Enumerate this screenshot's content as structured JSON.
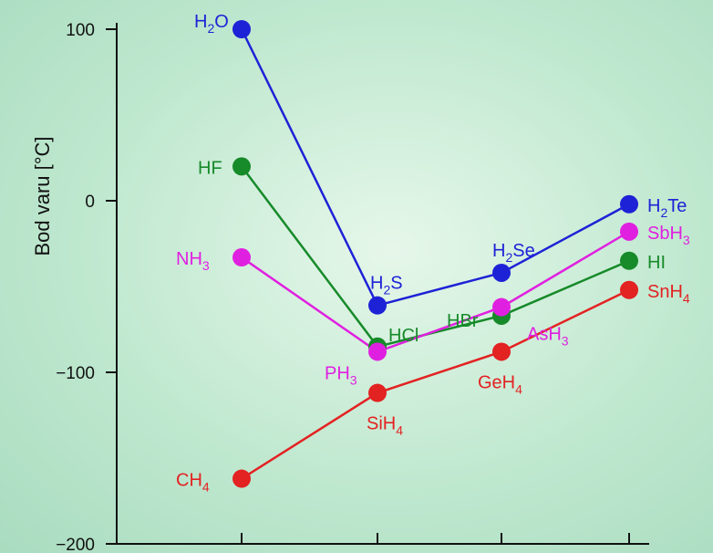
{
  "chart_data": {
    "type": "line",
    "ylabel": "Bod varu [°C]",
    "xlabel": "",
    "ylim": [
      -200,
      100
    ],
    "yticks": [
      100,
      0,
      -100,
      -200
    ],
    "ytick_labels": [
      "100",
      "0",
      "−100",
      "−200"
    ],
    "x": [
      1,
      2,
      3,
      4
    ],
    "grid": false,
    "legend": "none",
    "series": [
      {
        "color": "#1e22d6",
        "values": [
          100,
          -61,
          -42,
          -2
        ],
        "labels": [
          {
            "text": "H",
            "sub": "2",
            "rest": "O"
          },
          {
            "text": "H",
            "sub": "2",
            "rest": "S"
          },
          {
            "text": "H",
            "sub": "2",
            "rest": "Se"
          },
          {
            "text": "H",
            "sub": "2",
            "rest": "Te"
          }
        ]
      },
      {
        "color": "#178a2a",
        "values": [
          20,
          -85,
          -67,
          -35
        ],
        "labels": [
          {
            "text": "HF"
          },
          {
            "text": "HCl"
          },
          {
            "text": "HBr"
          },
          {
            "text": "HI"
          }
        ]
      },
      {
        "color": "#e020e0",
        "values": [
          -33,
          -88,
          -62,
          -18
        ],
        "labels": [
          {
            "text": "NH",
            "sub": "3"
          },
          {
            "text": "PH",
            "sub": "3"
          },
          {
            "text": "AsH",
            "sub": "3"
          },
          {
            "text": "SbH",
            "sub": "3"
          }
        ]
      },
      {
        "color": "#e32222",
        "values": [
          -162,
          -112,
          -88,
          -52
        ],
        "labels": [
          {
            "text": "CH",
            "sub": "4"
          },
          {
            "text": "SiH",
            "sub": "4"
          },
          {
            "text": "GeH",
            "sub": "4"
          },
          {
            "text": "SnH",
            "sub": "4"
          }
        ]
      }
    ]
  }
}
